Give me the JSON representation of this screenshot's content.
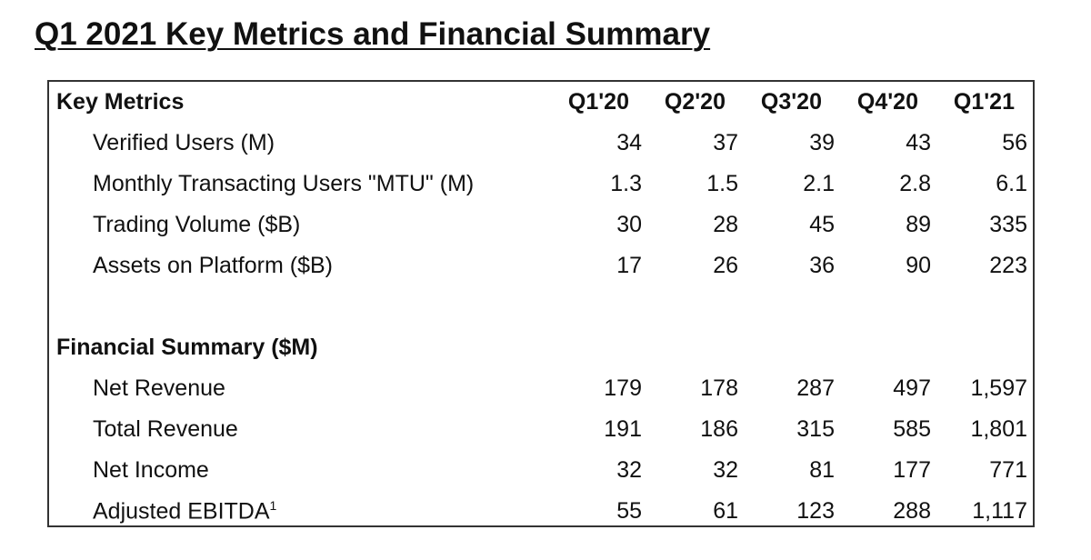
{
  "title": "Q1 2021 Key Metrics and Financial Summary",
  "columns": [
    "Q1'20",
    "Q2'20",
    "Q3'20",
    "Q4'20",
    "Q1'21"
  ],
  "key_metrics": {
    "heading": "Key Metrics",
    "rows": [
      {
        "label": "Verified Users (M)",
        "values": [
          "34",
          "37",
          "39",
          "43",
          "56"
        ]
      },
      {
        "label": "Monthly Transacting Users \"MTU\" (M)",
        "values": [
          "1.3",
          "1.5",
          "2.1",
          "2.8",
          "6.1"
        ]
      },
      {
        "label": "Trading Volume ($B)",
        "values": [
          "30",
          "28",
          "45",
          "89",
          "335"
        ]
      },
      {
        "label": "Assets on Platform ($B)",
        "values": [
          "17",
          "26",
          "36",
          "90",
          "223"
        ]
      }
    ]
  },
  "financial_summary": {
    "heading": "Financial Summary ($M)",
    "rows": [
      {
        "label": "Net Revenue",
        "values": [
          "179",
          "178",
          "287",
          "497",
          "1,597"
        ]
      },
      {
        "label": "Total Revenue",
        "values": [
          "191",
          "186",
          "315",
          "585",
          "1,801"
        ]
      },
      {
        "label": "Net Income",
        "values": [
          "32",
          "32",
          "81",
          "177",
          "771"
        ]
      },
      {
        "label": "Adjusted EBITDA",
        "footnote": "1",
        "values": [
          "55",
          "61",
          "123",
          "288",
          "1,117"
        ]
      }
    ]
  }
}
